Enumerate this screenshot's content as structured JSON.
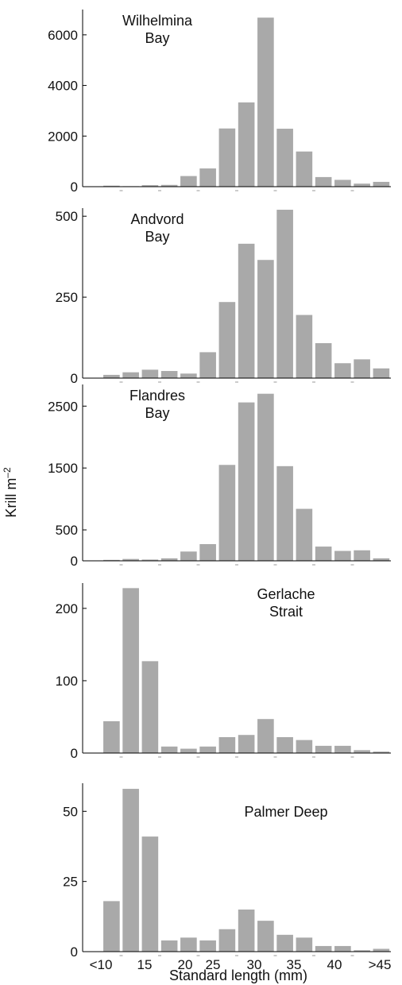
{
  "chart_data": {
    "type": "bar",
    "ylabel": "Krill m",
    "ylabel_sup": "–2",
    "xlabel": "Standard length (mm)",
    "x_tick_labels": [
      "<10",
      "15",
      "20",
      "25",
      "30",
      "35",
      "40",
      ">45"
    ],
    "bin_count": 15,
    "bar_color": "#a9a9a9",
    "panels": [
      {
        "title_lines": [
          "Wilhelmina",
          "Bay"
        ],
        "title_pos": "top-left",
        "ylim": [
          0,
          7000
        ],
        "yticks": [
          0,
          2000,
          4000,
          6000
        ],
        "ytick_labels": [
          "0",
          "2000",
          "4000",
          "6000"
        ],
        "values": [
          0,
          40,
          20,
          60,
          70,
          420,
          720,
          2300,
          3330,
          6680,
          2290,
          1390,
          380,
          270,
          120,
          190
        ]
      },
      {
        "title_lines": [
          "Andvord",
          "Bay"
        ],
        "title_pos": "top-left",
        "ylim": [
          0,
          525
        ],
        "yticks": [
          0,
          250,
          500
        ],
        "ytick_labels": [
          "0",
          "250",
          "500"
        ],
        "values": [
          0,
          10,
          18,
          26,
          22,
          14,
          80,
          235,
          415,
          365,
          520,
          195,
          108,
          46,
          58,
          30
        ]
      },
      {
        "title_lines": [
          "Flandres",
          "Bay"
        ],
        "title_pos": "top-left",
        "ylim": [
          0,
          2850
        ],
        "yticks": [
          0,
          500,
          1500,
          2500
        ],
        "ytick_labels": [
          "0",
          "500",
          "1500",
          "2500"
        ],
        "values": [
          0,
          15,
          30,
          20,
          40,
          150,
          270,
          1550,
          2560,
          2700,
          1530,
          840,
          230,
          160,
          170,
          40
        ]
      },
      {
        "title_lines": [
          "Gerlache",
          "Strait"
        ],
        "title_pos": "top-right",
        "ylim": [
          0,
          235
        ],
        "yticks": [
          0,
          100,
          200
        ],
        "ytick_labels": [
          "0",
          "100",
          "200"
        ],
        "values": [
          0,
          44,
          228,
          127,
          9,
          6,
          9,
          22,
          25,
          47,
          22,
          18,
          10,
          10,
          4,
          2
        ]
      },
      {
        "title_lines": [
          "Palmer Deep"
        ],
        "title_pos": "top-right",
        "ylim": [
          0,
          60
        ],
        "yticks": [
          0,
          25,
          50
        ],
        "ytick_labels": [
          "0",
          "25",
          "50"
        ],
        "values": [
          0,
          18,
          58,
          41,
          4,
          5,
          4,
          8,
          15,
          11,
          6,
          5,
          2,
          2,
          0.5,
          1
        ]
      }
    ]
  }
}
